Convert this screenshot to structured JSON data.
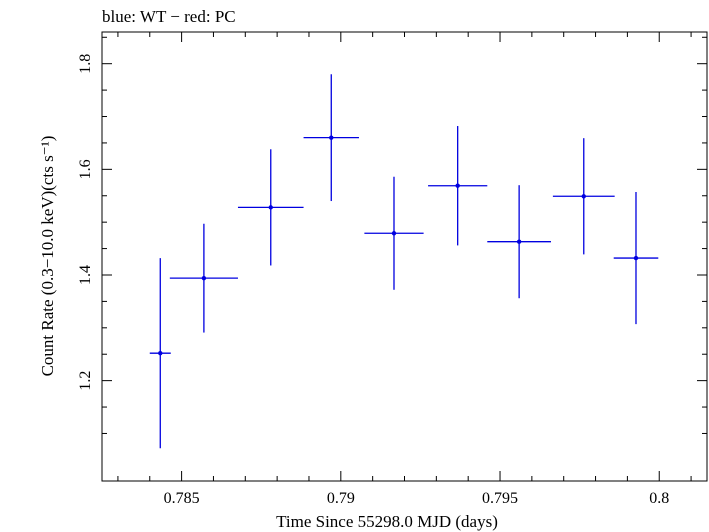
{
  "chart_data": {
    "type": "scatter",
    "title": "blue: WT − red: PC",
    "xlabel": "Time Since 55298.0 MJD (days)",
    "ylabel": "Count Rate (0.3−10.0 keV)(cts s⁻¹)",
    "xlim": [
      0.7825,
      0.8015
    ],
    "ylim": [
      1.01,
      1.86
    ],
    "x_ticks": [
      0.785,
      0.79,
      0.795,
      0.8
    ],
    "x_tick_labels": [
      "0.785",
      "0.79",
      "0.795",
      "0.8"
    ],
    "y_ticks": [
      1.2,
      1.4,
      1.6,
      1.8
    ],
    "y_tick_labels": [
      "1.2",
      "1.4",
      "1.6",
      "1.8"
    ],
    "grid": false,
    "series": [
      {
        "color": "#0000e0",
        "points": [
          {
            "x": 0.78433,
            "y": 1.252,
            "xerr": 0.00033,
            "yerr": 0.18
          },
          {
            "x": 0.7857,
            "y": 1.394,
            "xerr": 0.00107,
            "yerr": 0.103
          },
          {
            "x": 0.7878,
            "y": 1.528,
            "xerr": 0.00103,
            "yerr": 0.11
          },
          {
            "x": 0.7897,
            "y": 1.66,
            "xerr": 0.00087,
            "yerr": 0.12
          },
          {
            "x": 0.79167,
            "y": 1.479,
            "xerr": 0.00093,
            "yerr": 0.107
          },
          {
            "x": 0.79367,
            "y": 1.569,
            "xerr": 0.00093,
            "yerr": 0.113
          },
          {
            "x": 0.7956,
            "y": 1.463,
            "xerr": 0.001,
            "yerr": 0.107
          },
          {
            "x": 0.79763,
            "y": 1.549,
            "xerr": 0.00097,
            "yerr": 0.11
          },
          {
            "x": 0.79927,
            "y": 1.432,
            "xerr": 0.0007,
            "yerr": 0.125
          }
        ]
      }
    ]
  }
}
